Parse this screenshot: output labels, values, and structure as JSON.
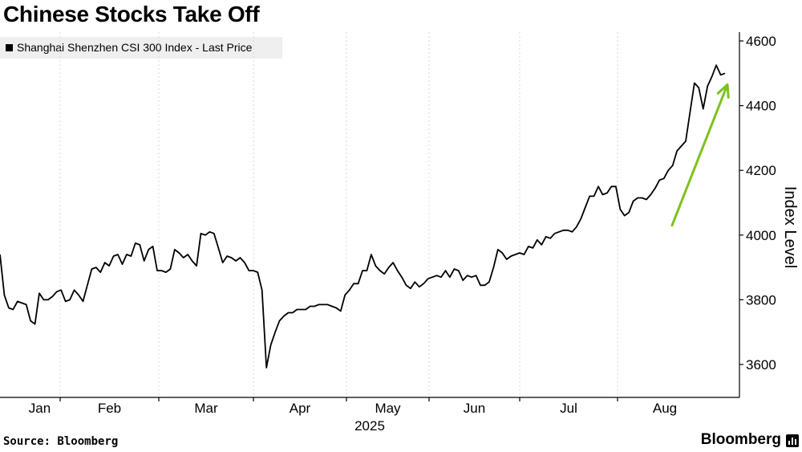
{
  "title": "Chinese Stocks Take Off",
  "legend": {
    "label": "Shanghai Shenzhen CSI 300 Index - Last Price"
  },
  "source": "Source: Bloomberg",
  "brand": "Bloomberg",
  "colors": {
    "line": "#000000",
    "arrow": "#7dc21e",
    "grid": "#d9d9d9",
    "legend_bg": "#efefef"
  },
  "chart_data": {
    "type": "line",
    "ylabel": "Index Level",
    "year_label": "2025",
    "ylim": [
      3500,
      4620
    ],
    "y_ticks": [
      3600,
      3800,
      4000,
      4200,
      4400,
      4600
    ],
    "y_axis_side": "right",
    "grid": "vertical dashed at month boundaries",
    "months": [
      "Jan",
      "Feb",
      "Mar",
      "Apr",
      "May",
      "Jun",
      "Jul",
      "Aug"
    ],
    "series": [
      {
        "values": [
          3940,
          3815,
          3775,
          3770,
          3795,
          3790,
          3785,
          3735,
          3725,
          3820,
          3800,
          3800,
          3810,
          3825,
          3830,
          3795,
          3800,
          3830,
          3815,
          3795,
          3845,
          3895,
          3900,
          3885,
          3915,
          3905,
          3935,
          3940,
          3910,
          3940,
          3935,
          3975,
          3970,
          3920,
          3955,
          3965,
          3890,
          3890,
          3885,
          3895,
          3955,
          3945,
          3930,
          3940,
          3920,
          3905,
          4005,
          4000,
          4010,
          4005,
          3960,
          3915,
          3935,
          3930,
          3920,
          3930,
          3915,
          3890,
          3890,
          3885,
          3830,
          3590,
          3660,
          3700,
          3735,
          3750,
          3760,
          3760,
          3770,
          3770,
          3770,
          3780,
          3780,
          3785,
          3785,
          3785,
          3780,
          3775,
          3765,
          3815,
          3830,
          3850,
          3850,
          3890,
          3890,
          3940,
          3905,
          3890,
          3880,
          3900,
          3915,
          3890,
          3870,
          3845,
          3835,
          3855,
          3840,
          3850,
          3865,
          3870,
          3875,
          3870,
          3890,
          3870,
          3895,
          3890,
          3860,
          3875,
          3870,
          3875,
          3845,
          3845,
          3855,
          3900,
          3955,
          3945,
          3925,
          3935,
          3940,
          3945,
          3940,
          3965,
          3960,
          3985,
          3970,
          3995,
          3990,
          4005,
          4010,
          4015,
          4015,
          4010,
          4025,
          4050,
          4085,
          4120,
          4120,
          4150,
          4125,
          4130,
          4150,
          4150,
          4080,
          4060,
          4070,
          4105,
          4115,
          4115,
          4110,
          4125,
          4145,
          4170,
          4175,
          4200,
          4215,
          4260,
          4275,
          4290,
          4380,
          4470,
          4455,
          4390,
          4460,
          4490,
          4525,
          4495,
          4500
        ]
      }
    ],
    "annotations": [
      {
        "type": "arrow",
        "description": "upward trend arrow",
        "from": {
          "x": "late Jul",
          "y": 4030
        },
        "to": {
          "x": "end Aug",
          "y": 4465
        }
      }
    ]
  }
}
